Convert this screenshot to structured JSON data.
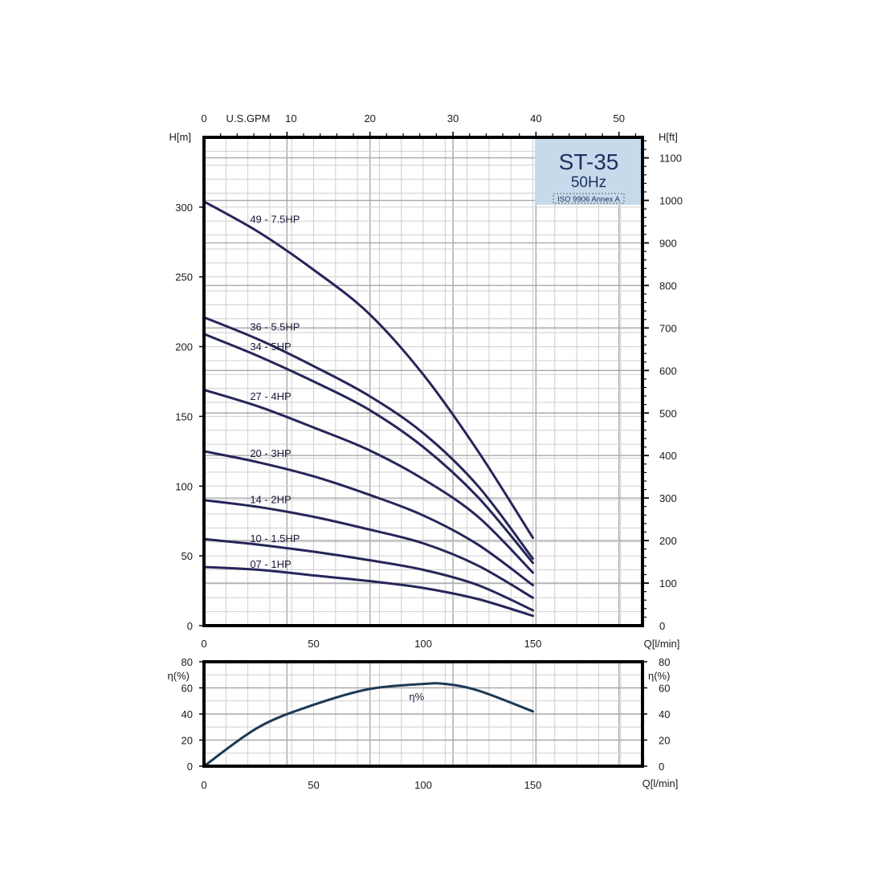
{
  "chart_data": [
    {
      "type": "line",
      "top_axis_label": "U.S.GPM",
      "top_ticks": [
        "0",
        "10",
        "20",
        "30",
        "40",
        "50"
      ],
      "top_tick_values": [
        0,
        10,
        20,
        30,
        40,
        50
      ],
      "xlabel": "Q[l/min]",
      "x_ticks": [
        "0",
        "50",
        "100",
        "150"
      ],
      "x_tick_values": [
        0,
        50,
        100,
        150
      ],
      "xlim": [
        0,
        200
      ],
      "ylabel_left": "H[m]",
      "y_ticks_left": [
        "0",
        "50",
        "100",
        "150",
        "200",
        "250",
        "300"
      ],
      "y_tick_values_left": [
        0,
        50,
        100,
        150,
        200,
        250,
        300
      ],
      "ylim": [
        0,
        350
      ],
      "ylabel_right": "H[ft]",
      "y_ticks_right": [
        "0",
        "100",
        "200",
        "300",
        "400",
        "500",
        "600",
        "700",
        "800",
        "900",
        "1000",
        "1100"
      ],
      "y_tick_values_right": [
        0,
        100,
        200,
        300,
        400,
        500,
        600,
        700,
        800,
        900,
        1000,
        1100
      ],
      "grid": true,
      "legend_box": {
        "title": "ST-35",
        "subtitle": "50Hz",
        "note": "ISO 9906 Annex A",
        "placement": "top-right",
        "background": "#c5dbeb"
      },
      "series": [
        {
          "name": "49 - 7.5HP",
          "x": [
            0,
            25,
            50,
            75,
            100,
            125,
            150
          ],
          "y": [
            304,
            282,
            255,
            224,
            180,
            125,
            63
          ]
        },
        {
          "name": "36 - 5.5HP",
          "x": [
            0,
            25,
            50,
            75,
            100,
            125,
            150
          ],
          "y": [
            221,
            205,
            186,
            165,
            138,
            100,
            48
          ]
        },
        {
          "name": "34 - 5HP",
          "x": [
            0,
            25,
            50,
            75,
            100,
            125,
            150
          ],
          "y": [
            209,
            193,
            175,
            155,
            128,
            92,
            45
          ]
        },
        {
          "name": "27 - 4HP",
          "x": [
            0,
            25,
            50,
            75,
            100,
            125,
            150
          ],
          "y": [
            169,
            157,
            142,
            126,
            105,
            78,
            38
          ]
        },
        {
          "name": "20 - 3HP",
          "x": [
            0,
            25,
            50,
            75,
            100,
            125,
            150
          ],
          "y": [
            125,
            117,
            107,
            94,
            79,
            58,
            29
          ]
        },
        {
          "name": "14 - 2HP",
          "x": [
            0,
            25,
            50,
            75,
            100,
            125,
            150
          ],
          "y": [
            90,
            85,
            78,
            69,
            59,
            43,
            20
          ]
        },
        {
          "name": "10 - 1.5HP",
          "x": [
            0,
            25,
            50,
            75,
            100,
            125,
            150
          ],
          "y": [
            62,
            58,
            53,
            47,
            40,
            29,
            11
          ]
        },
        {
          "name": "07 - 1HP",
          "x": [
            0,
            25,
            50,
            75,
            100,
            125,
            150
          ],
          "y": [
            42,
            40,
            36,
            32,
            27,
            19,
            7
          ]
        }
      ]
    },
    {
      "type": "line",
      "xlabel": "Q[l/min]",
      "x_ticks": [
        "0",
        "50",
        "100",
        "150"
      ],
      "x_tick_values": [
        0,
        50,
        100,
        150
      ],
      "xlim": [
        0,
        200
      ],
      "ylabel_left": "η(%)",
      "ylabel_right": "η(%)",
      "y_ticks": [
        "0",
        "20",
        "40",
        "60",
        "80"
      ],
      "y_tick_values": [
        0,
        20,
        40,
        60,
        80
      ],
      "ylim": [
        0,
        80
      ],
      "grid": true,
      "series": [
        {
          "name": "η%",
          "x": [
            0,
            25,
            50,
            75,
            100,
            110,
            125,
            150
          ],
          "y": [
            0,
            30,
            47,
            59,
            63,
            63,
            58,
            42
          ]
        }
      ]
    }
  ]
}
